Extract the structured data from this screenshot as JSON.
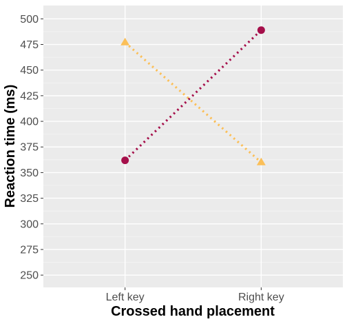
{
  "chart_data": {
    "type": "line",
    "title": "",
    "xlabel": "Crossed hand placement",
    "ylabel": "Reaction time (ms)",
    "categories": [
      "Left key",
      "Right key"
    ],
    "ylim": [
      238,
      513
    ],
    "yticks": [
      250,
      275,
      300,
      325,
      350,
      375,
      400,
      425,
      450,
      475,
      500
    ],
    "grid": true,
    "legend": "none",
    "series": [
      {
        "values": [
          362,
          489
        ],
        "color": "#a50f4a",
        "marker": "circle",
        "linestyle": "dotted"
      },
      {
        "values": [
          477,
          360
        ],
        "color": "#fbbf58",
        "marker": "triangle",
        "linestyle": "dotted"
      }
    ]
  }
}
